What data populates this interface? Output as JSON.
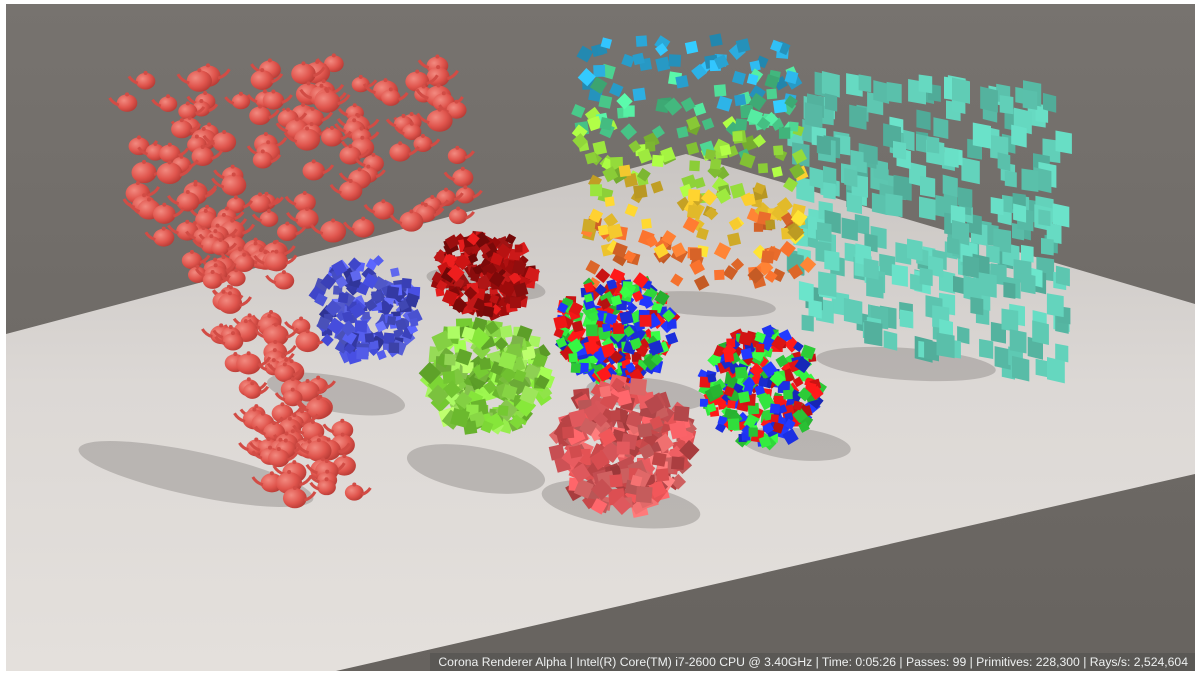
{
  "status_bar": {
    "text": "Corona Renderer Alpha | Intel(R) Core(TM) i7-2600 CPU @ 3.40GHz | Time: 0:05:26 | Passes: 99 | Primitives: 228,300 | Rays/s: 2,524,604"
  },
  "colors": {
    "background": "#6f6b67",
    "floor": "#e2ddd9",
    "teapots": "#e0554d",
    "blue_cubes": "#4a52d0",
    "dark_red_cubes": "#a81010",
    "light_green_cubes": "#86d444",
    "pink_cubes": "#d9565a",
    "teal_wall_cubes": "#5ec8b2",
    "mixed_cubes": [
      "#e01515",
      "#1c2fe0",
      "#2fd63a"
    ],
    "gradient_cubes": [
      "#2aa6d6",
      "#49c98a",
      "#8fd339",
      "#e0b82a",
      "#ec6d2c"
    ]
  }
}
